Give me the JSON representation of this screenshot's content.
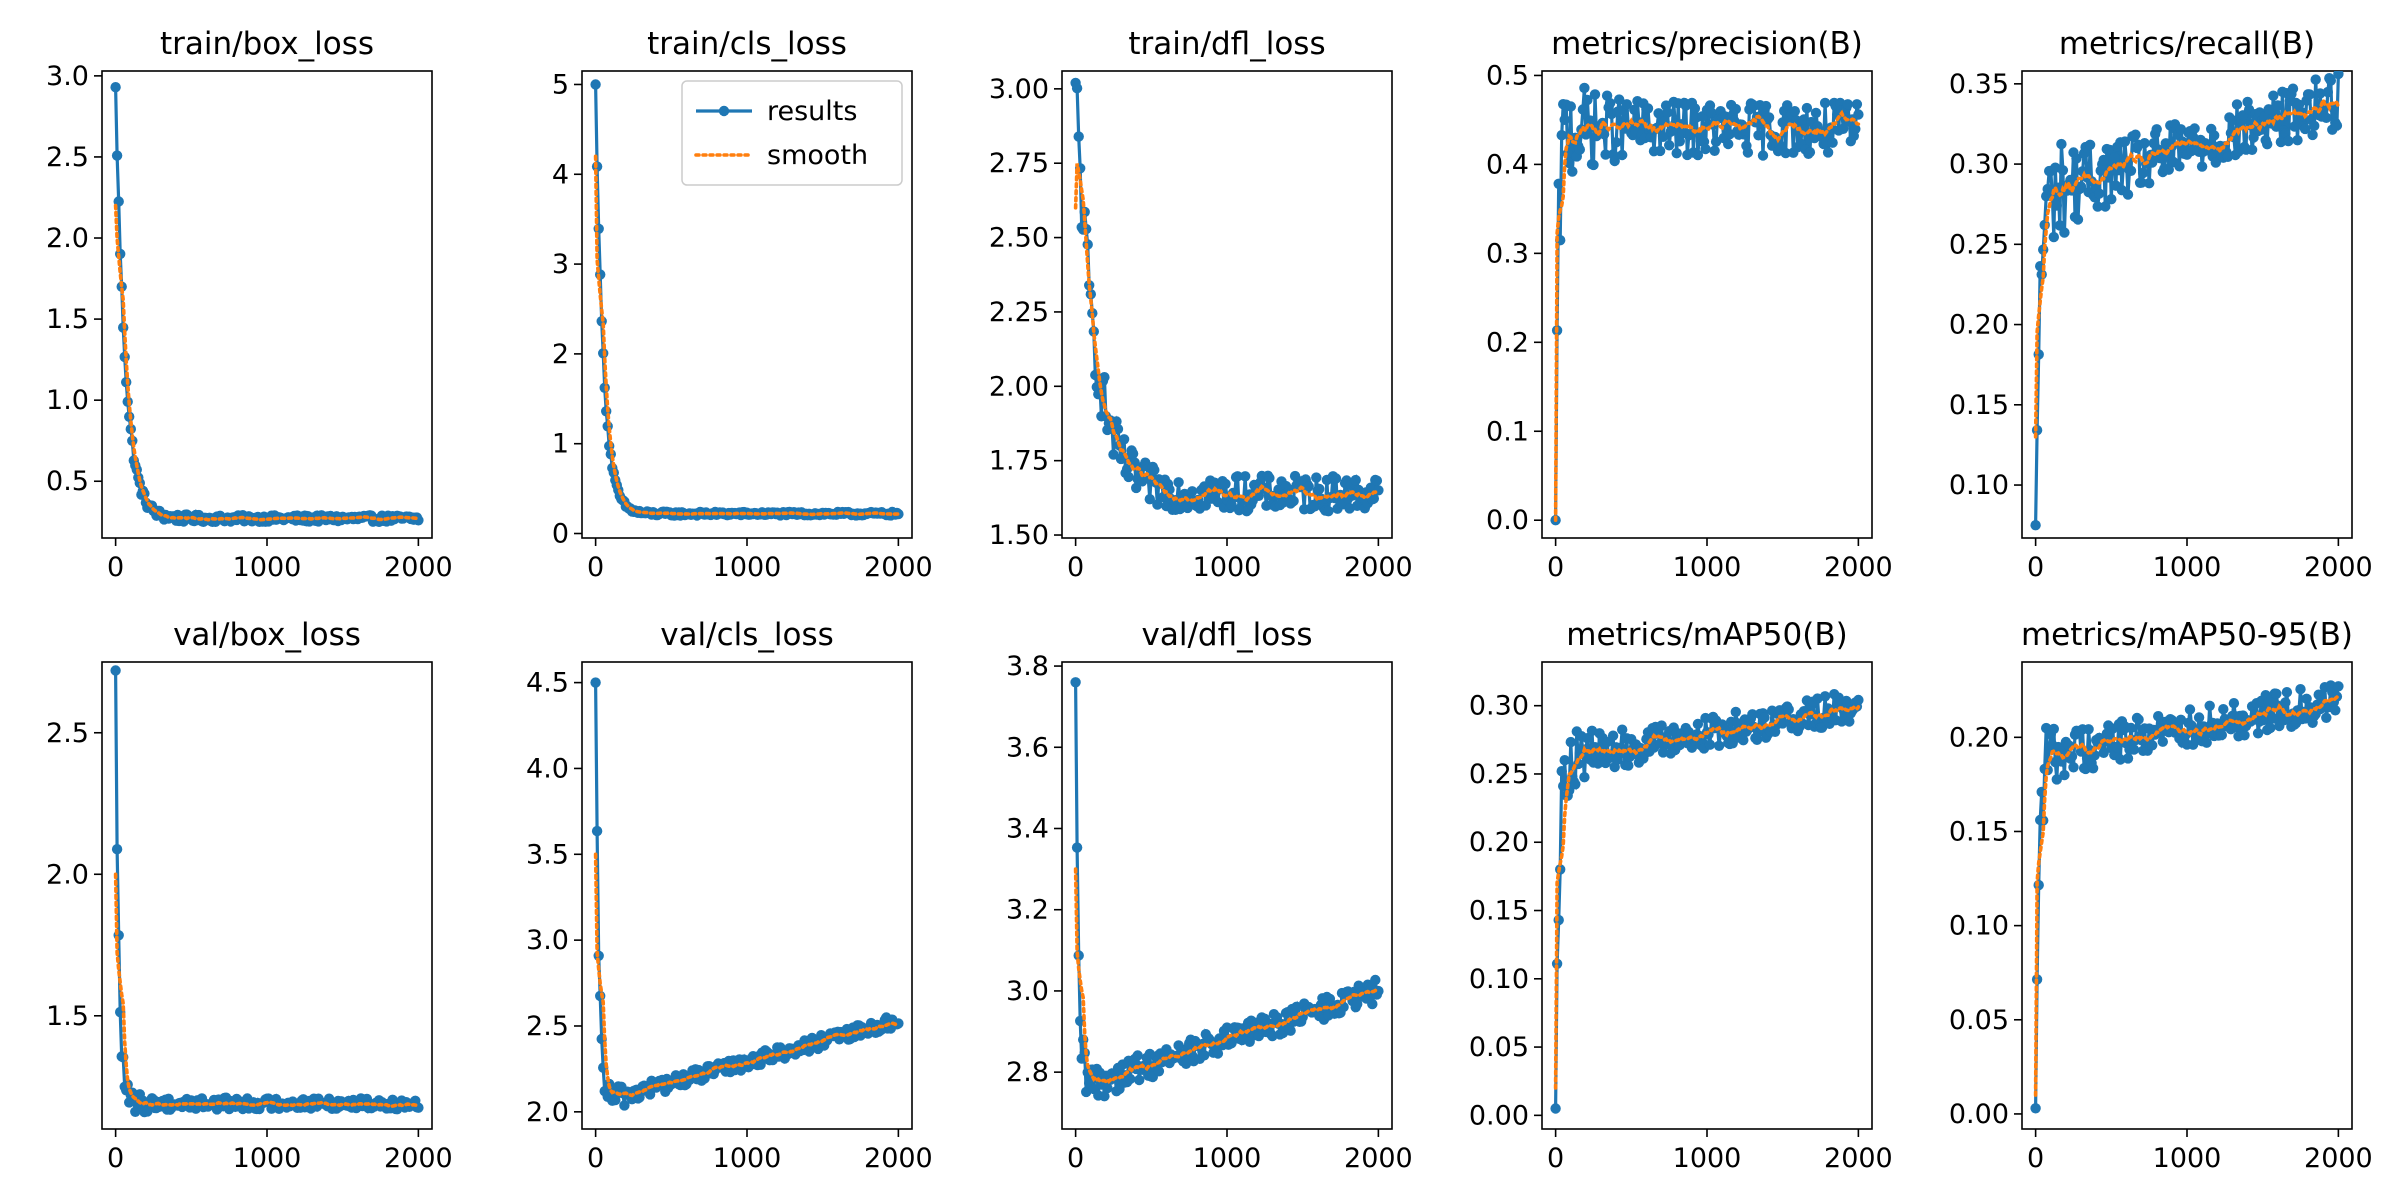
{
  "figure": {
    "rows": 2,
    "cols": 5
  },
  "colors": {
    "results": "#1f77b4",
    "smooth": "#ff7f0e",
    "axes": "#000000",
    "background": "#ffffff"
  },
  "legend": {
    "panel": 1,
    "placement": "top-right",
    "entries": [
      {
        "label": "results",
        "style": "line-marker",
        "color": "#1f77b4"
      },
      {
        "label": "smooth",
        "style": "dotted",
        "color": "#ff7f0e"
      }
    ]
  },
  "chart_data": [
    {
      "type": "line",
      "title": "train/box_loss",
      "xlim": [
        -90,
        2090
      ],
      "ylim": [
        0.15,
        3.03
      ],
      "xticks": [
        0,
        1000,
        2000
      ],
      "yticks": [
        0.5,
        1.0,
        1.5,
        2.0,
        2.5,
        3.0
      ],
      "ytick_labels": [
        "0.5",
        "1.0",
        "1.5",
        "2.0",
        "2.5",
        "3.0"
      ],
      "curve": {
        "kind": "decay",
        "start": 2.93,
        "end": 0.27,
        "k": 0.016,
        "scale": 0.0,
        "noise": 0.02,
        "smooth_start": 2.2
      }
    },
    {
      "type": "line",
      "title": "train/cls_loss",
      "xlim": [
        -90,
        2090
      ],
      "ylim": [
        -0.05,
        5.15
      ],
      "xticks": [
        0,
        1000,
        2000
      ],
      "yticks": [
        0,
        1,
        2,
        3,
        4,
        5
      ],
      "ytick_labels": [
        "0",
        "1",
        "2",
        "3",
        "4",
        "5"
      ],
      "curve": {
        "kind": "decay",
        "start": 5.0,
        "end": 0.22,
        "k": 0.02,
        "scale": 0.0,
        "noise": 0.02,
        "smooth_start": 4.2
      }
    },
    {
      "type": "line",
      "title": "train/dfl_loss",
      "xlim": [
        -90,
        2090
      ],
      "ylim": [
        1.49,
        3.06
      ],
      "xticks": [
        0,
        1000,
        2000
      ],
      "yticks": [
        1.5,
        1.75,
        2.0,
        2.25,
        2.5,
        2.75,
        3.0
      ],
      "ytick_labels": [
        "1.50",
        "1.75",
        "2.00",
        "2.25",
        "2.50",
        "2.75",
        "3.00"
      ],
      "curve": {
        "kind": "decay",
        "start": 3.02,
        "end": 1.64,
        "k": 0.008,
        "scale": 0.0,
        "noise": 0.06,
        "smooth_start": 2.6
      }
    },
    {
      "type": "line",
      "title": "metrics/precision(B)",
      "xlim": [
        -90,
        2090
      ],
      "ylim": [
        -0.02,
        0.505
      ],
      "xticks": [
        0,
        1000,
        2000
      ],
      "yticks": [
        0.0,
        0.1,
        0.2,
        0.3,
        0.4,
        0.5
      ],
      "ytick_labels": [
        "0.0",
        "0.1",
        "0.2",
        "0.3",
        "0.4",
        "0.5"
      ],
      "curve": {
        "kind": "rise",
        "start": 0.0,
        "end": 0.44,
        "k": 0.06,
        "scale": 0.0,
        "noise": 0.03,
        "smooth_start": 0.0
      }
    },
    {
      "type": "line",
      "title": "metrics/recall(B)",
      "xlim": [
        -90,
        2090
      ],
      "ylim": [
        0.067,
        0.358
      ],
      "xticks": [
        0,
        1000,
        2000
      ],
      "yticks": [
        0.1,
        0.15,
        0.2,
        0.25,
        0.3,
        0.35
      ],
      "ytick_labels": [
        "0.10",
        "0.15",
        "0.20",
        "0.25",
        "0.30",
        "0.35"
      ],
      "curve": {
        "kind": "rise",
        "start": 0.075,
        "end": 0.28,
        "k": 0.04,
        "scale": 3e-05,
        "noise": 0.018,
        "smooth_start": 0.13
      }
    },
    {
      "type": "line",
      "title": "val/box_loss",
      "xlim": [
        -90,
        2090
      ],
      "ylim": [
        1.1,
        2.75
      ],
      "xticks": [
        0,
        1000,
        2000
      ],
      "yticks": [
        1.5,
        2.0,
        2.5
      ],
      "ytick_labels": [
        "1.5",
        "2.0",
        "2.5"
      ],
      "curve": {
        "kind": "decay",
        "start": 2.72,
        "end": 1.19,
        "k": 0.05,
        "scale": 0.0,
        "noise": 0.02,
        "smooth_start": 2.0
      }
    },
    {
      "type": "line",
      "title": "val/cls_loss",
      "xlim": [
        -90,
        2090
      ],
      "ylim": [
        1.9,
        4.62
      ],
      "xticks": [
        0,
        1000,
        2000
      ],
      "yticks": [
        2.0,
        2.5,
        3.0,
        3.5,
        4.0,
        4.5
      ],
      "ytick_labels": [
        "2.0",
        "2.5",
        "3.0",
        "3.5",
        "4.0",
        "4.5"
      ],
      "curve": {
        "kind": "vshape",
        "start": 4.5,
        "end": 2.05,
        "k": 0.05,
        "scale": 0.00024,
        "noise": 0.04,
        "smooth_start": 3.5
      }
    },
    {
      "type": "line",
      "title": "val/dfl_loss",
      "xlim": [
        -90,
        2090
      ],
      "ylim": [
        2.66,
        3.81
      ],
      "xticks": [
        0,
        1000,
        2000
      ],
      "yticks": [
        2.8,
        3.0,
        3.2,
        3.4,
        3.6,
        3.8
      ],
      "ytick_labels": [
        "2.8",
        "3.0",
        "3.2",
        "3.4",
        "3.6",
        "3.8"
      ],
      "curve": {
        "kind": "vshape",
        "start": 3.76,
        "end": 2.76,
        "k": 0.06,
        "scale": 0.00012,
        "noise": 0.03,
        "smooth_start": 3.3
      }
    },
    {
      "type": "line",
      "title": "metrics/mAP50(B)",
      "xlim": [
        -90,
        2090
      ],
      "ylim": [
        -0.01,
        0.332
      ],
      "xticks": [
        0,
        1000,
        2000
      ],
      "yticks": [
        0.0,
        0.05,
        0.1,
        0.15,
        0.2,
        0.25,
        0.3
      ],
      "ytick_labels": [
        "0.00",
        "0.05",
        "0.10",
        "0.15",
        "0.20",
        "0.25",
        "0.30"
      ],
      "curve": {
        "kind": "rise",
        "start": 0.005,
        "end": 0.26,
        "k": 0.05,
        "scale": 2e-05,
        "noise": 0.012,
        "smooth_start": 0.02
      }
    },
    {
      "type": "line",
      "title": "metrics/mAP50-95(B)",
      "xlim": [
        -90,
        2090
      ],
      "ylim": [
        -0.008,
        0.24
      ],
      "xticks": [
        0,
        1000,
        2000
      ],
      "yticks": [
        0.0,
        0.05,
        0.1,
        0.15,
        0.2
      ],
      "ytick_labels": [
        "0.00",
        "0.05",
        "0.10",
        "0.15",
        "0.20"
      ],
      "curve": {
        "kind": "rise",
        "start": 0.003,
        "end": 0.19,
        "k": 0.05,
        "scale": 1.5e-05,
        "noise": 0.01,
        "smooth_start": 0.01
      }
    }
  ]
}
